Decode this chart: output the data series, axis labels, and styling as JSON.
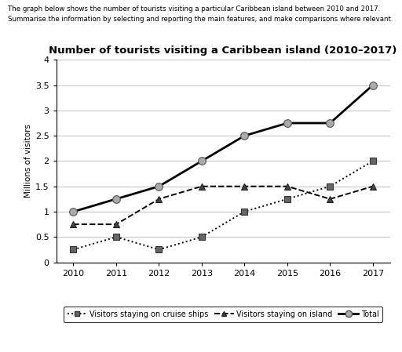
{
  "title": "Number of tourists visiting a Caribbean island (2010–2017)",
  "subtitle_line1": "The graph below shows the number of tourists visiting a particular Caribbean island between 2010 and 2017.",
  "subtitle_line2": "Summarise the information by selecting and reporting the main features, and make comparisons where relevant.",
  "ylabel": "Millions of visitors",
  "years": [
    2010,
    2011,
    2012,
    2013,
    2014,
    2015,
    2016,
    2017
  ],
  "cruise_ships": [
    0.25,
    0.5,
    0.25,
    0.5,
    1.0,
    1.25,
    1.5,
    2.0
  ],
  "on_island": [
    0.75,
    0.75,
    1.25,
    1.5,
    1.5,
    1.5,
    1.25,
    1.5
  ],
  "total": [
    1.0,
    1.25,
    1.5,
    2.0,
    2.5,
    2.75,
    2.75,
    3.5
  ],
  "ylim": [
    0,
    4
  ],
  "yticks": [
    0,
    0.5,
    1.0,
    1.5,
    2.0,
    2.5,
    3.0,
    3.5,
    4.0
  ],
  "background_color": "#ffffff",
  "grid_color": "#c8c8c8",
  "legend_labels": [
    "Visitors staying on cruise ships",
    "Visitors staying on island",
    "Total"
  ]
}
